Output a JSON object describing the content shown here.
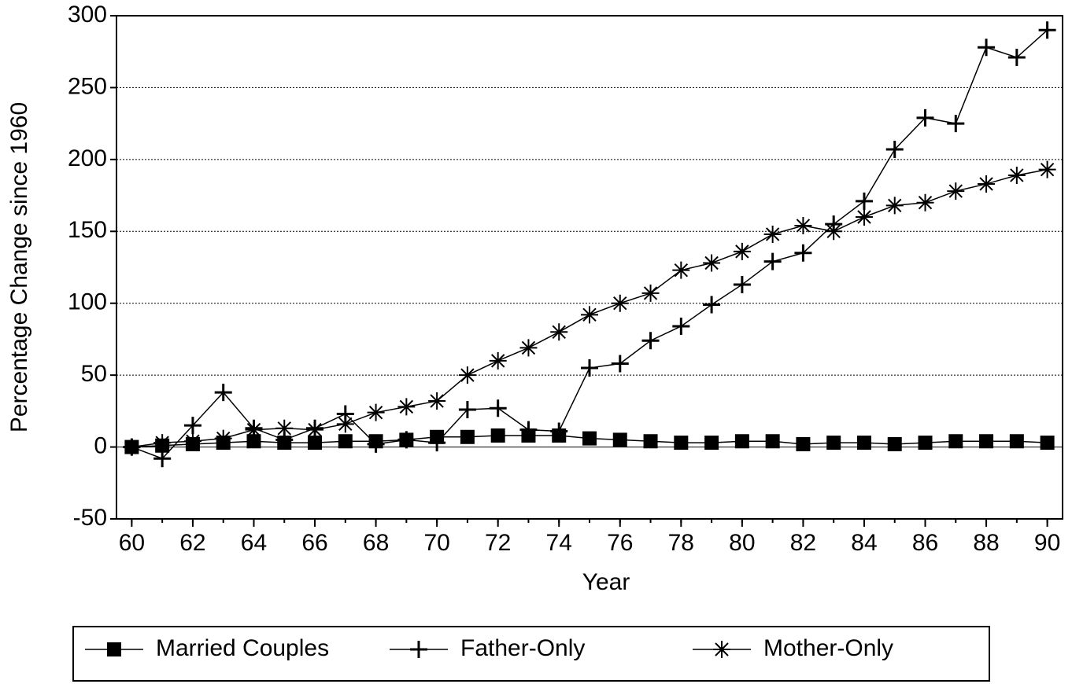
{
  "chart_data": {
    "type": "line",
    "xlabel": "Year",
    "ylabel": "Percentage Change since 1960",
    "x": [
      60,
      61,
      62,
      63,
      64,
      65,
      66,
      67,
      68,
      69,
      70,
      71,
      72,
      73,
      74,
      75,
      76,
      77,
      78,
      79,
      80,
      81,
      82,
      83,
      84,
      85,
      86,
      87,
      88,
      89,
      90
    ],
    "series": [
      {
        "name": "Married Couples",
        "color": "#000000",
        "marker": "square",
        "values": [
          0,
          1,
          2,
          3,
          4,
          3,
          3,
          4,
          4,
          5,
          7,
          7,
          8,
          8,
          8,
          6,
          5,
          4,
          3,
          3,
          4,
          4,
          2,
          3,
          3,
          2,
          3,
          4,
          4,
          4,
          3
        ]
      },
      {
        "name": "Father-Only",
        "color": "#000000",
        "marker": "plus",
        "values": [
          0,
          -8,
          15,
          38,
          13,
          5,
          13,
          23,
          2,
          5,
          3,
          26,
          27,
          12,
          11,
          55,
          58,
          74,
          84,
          99,
          113,
          129,
          135,
          155,
          171,
          207,
          229,
          225,
          278,
          271,
          290
        ]
      },
      {
        "name": "Mother-Only",
        "color": "#000000",
        "marker": "asterisk",
        "values": [
          0,
          3,
          4,
          6,
          12,
          13,
          12,
          16,
          24,
          28,
          32,
          50,
          60,
          69,
          80,
          92,
          100,
          107,
          123,
          128,
          136,
          148,
          154,
          150,
          160,
          168,
          170,
          178,
          183,
          189,
          193
        ]
      }
    ],
    "xlim": [
      59.5,
      90.5
    ],
    "xticks": [
      60,
      62,
      64,
      66,
      68,
      70,
      72,
      74,
      76,
      78,
      80,
      82,
      84,
      86,
      88,
      90
    ],
    "ylim": [
      -50,
      300
    ],
    "yticks": [
      -50,
      0,
      50,
      100,
      150,
      200,
      250,
      300
    ],
    "grid": true,
    "legend": "bottom"
  }
}
